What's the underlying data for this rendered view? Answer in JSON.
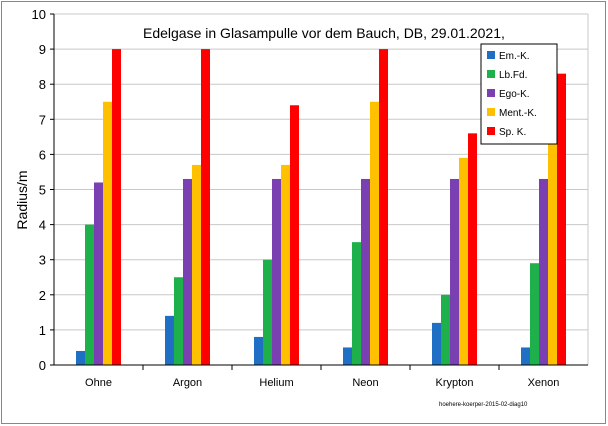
{
  "chart_data": {
    "type": "bar",
    "title": "Edelgase  in Glasampulle vor dem Bauch, DB, 29.01.2021,",
    "ylabel": "Radius/m",
    "xlabel": "",
    "ylim": [
      0,
      10
    ],
    "yticks": [
      "0",
      "1",
      "2",
      "3",
      "4",
      "5",
      "6",
      "7",
      "8",
      "9",
      "10"
    ],
    "grid": "horizontal",
    "legend_position": "top-right",
    "categories": [
      "Ohne",
      "Argon",
      "Helium",
      "Neon",
      "Krypton",
      "Xenon"
    ],
    "series": [
      {
        "name": "Em.-K.",
        "color": "#1F6FC5",
        "values": [
          0.4,
          1.4,
          0.8,
          0.5,
          1.2,
          0.5
        ]
      },
      {
        "name": "Lb.Fd.",
        "color": "#1DB04B",
        "values": [
          4.0,
          2.5,
          3.0,
          3.5,
          2.0,
          2.9
        ]
      },
      {
        "name": "Ego-K.",
        "color": "#7A3FB0",
        "values": [
          5.2,
          5.3,
          5.3,
          5.3,
          5.3,
          5.3
        ]
      },
      {
        "name": "Ment.-K.",
        "color": "#FFC000",
        "values": [
          7.5,
          5.7,
          5.7,
          7.5,
          5.9,
          6.7
        ]
      },
      {
        "name": "Sp. K.",
        "color": "#FF0000",
        "values": [
          9.0,
          9.0,
          7.4,
          9.0,
          6.6,
          8.3
        ]
      }
    ],
    "footnote": "hoehere-koerper-2015-02-diag10"
  }
}
